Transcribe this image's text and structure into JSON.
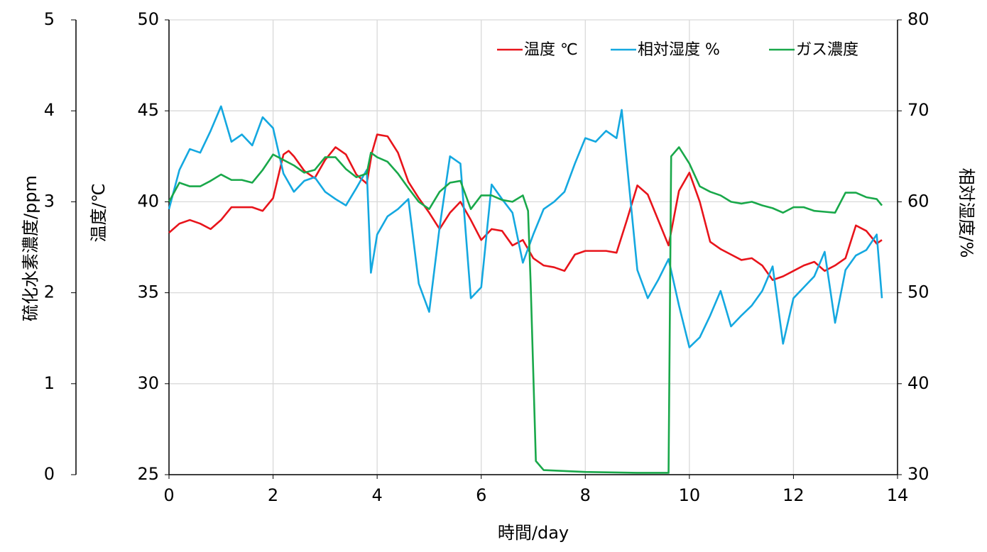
{
  "chart_data": {
    "type": "line",
    "x_label": "時間/day",
    "y_label": "温度/℃",
    "y2_label": "相対湿度/%",
    "y3_label": "硫化水素濃度/ppm",
    "xlim": [
      0,
      14
    ],
    "xticks": [
      0,
      2,
      4,
      6,
      8,
      10,
      12,
      14
    ],
    "ylim": [
      25,
      50
    ],
    "yticks": [
      25,
      30,
      35,
      40,
      45,
      50
    ],
    "y2lim": [
      30,
      80
    ],
    "y2ticks": [
      30,
      40,
      50,
      60,
      70,
      80
    ],
    "y3lim": [
      0,
      5
    ],
    "y3ticks": [
      0,
      1,
      2,
      3,
      4,
      5
    ],
    "grid": true,
    "legend": "top-right",
    "series": [
      {
        "name": "温度 ℃",
        "color": "#e8141b",
        "axis": "y",
        "x": [
          0,
          0.2,
          0.4,
          0.6,
          0.8,
          1.0,
          1.2,
          1.4,
          1.6,
          1.8,
          2.0,
          2.2,
          2.3,
          2.4,
          2.6,
          2.8,
          3.0,
          3.2,
          3.4,
          3.6,
          3.8,
          3.9,
          4.0,
          4.2,
          4.4,
          4.6,
          4.8,
          5.0,
          5.2,
          5.4,
          5.6,
          5.8,
          6.0,
          6.2,
          6.4,
          6.6,
          6.8,
          7.0,
          7.2,
          7.4,
          7.6,
          7.8,
          8.0,
          8.2,
          8.4,
          8.6,
          8.8,
          9.0,
          9.2,
          9.4,
          9.6,
          9.8,
          10.0,
          10.2,
          10.4,
          10.6,
          10.8,
          11.0,
          11.2,
          11.4,
          11.6,
          11.8,
          12.0,
          12.2,
          12.4,
          12.6,
          12.8,
          13.0,
          13.2,
          13.4,
          13.6,
          13.7
        ],
        "values": [
          38.3,
          38.8,
          39.0,
          38.8,
          38.5,
          39.0,
          39.7,
          39.7,
          39.7,
          39.5,
          40.2,
          42.6,
          42.8,
          42.5,
          41.7,
          41.3,
          42.3,
          43.0,
          42.6,
          41.5,
          41.0,
          42.7,
          43.7,
          43.6,
          42.7,
          41.1,
          40.2,
          39.4,
          38.5,
          39.4,
          40.0,
          39.0,
          37.9,
          38.5,
          38.4,
          37.6,
          37.9,
          36.9,
          36.5,
          36.4,
          36.2,
          37.1,
          37.3,
          37.3,
          37.3,
          37.2,
          39.0,
          40.9,
          40.4,
          39.0,
          37.6,
          40.6,
          41.6,
          40.0,
          37.8,
          37.4,
          37.1,
          36.8,
          36.9,
          36.5,
          35.7,
          35.9,
          36.2,
          36.5,
          36.7,
          36.2,
          36.5,
          36.9,
          38.7,
          38.4,
          37.7,
          37.9
        ]
      },
      {
        "name": "相対湿度 %",
        "color": "#14a8e0",
        "axis": "y2",
        "x": [
          0,
          0.2,
          0.4,
          0.6,
          0.8,
          1.0,
          1.2,
          1.4,
          1.6,
          1.8,
          2.0,
          2.2,
          2.4,
          2.6,
          2.8,
          3.0,
          3.2,
          3.4,
          3.6,
          3.8,
          3.88,
          4.0,
          4.2,
          4.4,
          4.6,
          4.8,
          5.0,
          5.2,
          5.4,
          5.6,
          5.8,
          6.0,
          6.2,
          6.4,
          6.6,
          6.8,
          7.0,
          7.2,
          7.4,
          7.6,
          7.8,
          8.0,
          8.2,
          8.4,
          8.6,
          8.7,
          8.8,
          9.0,
          9.2,
          9.4,
          9.6,
          9.8,
          10.0,
          10.2,
          10.4,
          10.6,
          10.8,
          11.0,
          11.2,
          11.4,
          11.6,
          11.8,
          12.0,
          12.2,
          12.4,
          12.6,
          12.8,
          13.0,
          13.2,
          13.4,
          13.6,
          13.7
        ],
        "values": [
          59.2,
          63.5,
          65.8,
          65.4,
          67.8,
          70.5,
          66.6,
          67.4,
          66.2,
          69.3,
          68.1,
          63.1,
          61.1,
          62.3,
          62.7,
          61.1,
          60.3,
          59.6,
          61.5,
          63.5,
          52.2,
          56.4,
          58.4,
          59.2,
          60.3,
          51.0,
          47.9,
          57.2,
          65.0,
          64.2,
          49.4,
          50.6,
          61.9,
          60.3,
          58.8,
          53.3,
          56.4,
          59.2,
          60.0,
          61.1,
          64.2,
          67.0,
          66.6,
          67.8,
          67.0,
          70.1,
          64.2,
          52.5,
          49.4,
          51.4,
          53.7,
          48.6,
          44.0,
          45.1,
          47.5,
          50.2,
          46.3,
          47.5,
          48.6,
          50.2,
          52.9,
          44.4,
          49.4,
          50.6,
          51.8,
          54.5,
          46.7,
          52.5,
          54.1,
          54.7,
          56.4,
          49.4
        ]
      },
      {
        "name": "ガス濃度",
        "color": "#19a84a",
        "axis": "y3",
        "x": [
          0,
          0.2,
          0.4,
          0.6,
          0.8,
          1.0,
          1.2,
          1.4,
          1.6,
          1.8,
          2.0,
          2.2,
          2.4,
          2.6,
          2.8,
          3.0,
          3.2,
          3.4,
          3.6,
          3.8,
          3.88,
          4.0,
          4.2,
          4.4,
          4.6,
          4.8,
          5.0,
          5.2,
          5.4,
          5.6,
          5.8,
          6.0,
          6.2,
          6.4,
          6.6,
          6.8,
          6.9,
          6.95,
          7.05,
          7.2,
          8.0,
          9.0,
          9.6,
          9.65,
          9.8,
          10.0,
          10.2,
          10.4,
          10.6,
          10.8,
          11.0,
          11.2,
          11.4,
          11.6,
          11.8,
          12.0,
          12.2,
          12.4,
          12.6,
          12.8,
          13.0,
          13.2,
          13.4,
          13.6,
          13.7
        ],
        "values": [
          3.0,
          3.21,
          3.17,
          3.17,
          3.23,
          3.3,
          3.24,
          3.24,
          3.21,
          3.35,
          3.52,
          3.46,
          3.4,
          3.32,
          3.35,
          3.49,
          3.49,
          3.36,
          3.27,
          3.31,
          3.54,
          3.49,
          3.44,
          3.31,
          3.15,
          3.0,
          2.92,
          3.11,
          3.21,
          3.23,
          2.92,
          3.07,
          3.07,
          3.02,
          3.0,
          3.07,
          2.9,
          2.1,
          0.15,
          0.05,
          0.03,
          0.02,
          0.02,
          3.5,
          3.6,
          3.42,
          3.17,
          3.11,
          3.07,
          3.0,
          2.98,
          3.0,
          2.96,
          2.93,
          2.88,
          2.94,
          2.94,
          2.9,
          2.89,
          2.88,
          3.1,
          3.1,
          3.05,
          3.03,
          2.96
        ]
      }
    ]
  }
}
